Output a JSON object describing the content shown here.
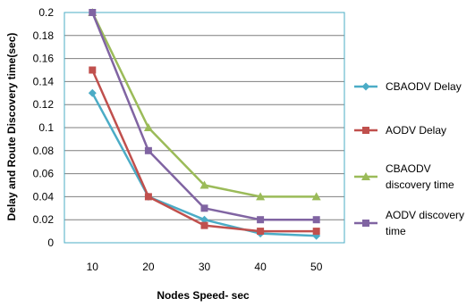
{
  "chart_data": {
    "type": "line",
    "x": [
      10,
      20,
      30,
      40,
      50
    ],
    "xlabel": "Nodes Speed- sec",
    "ylabel": "Delay and Route Discovery time(sec)",
    "ylim": [
      0,
      0.2
    ],
    "yticks": [
      "0",
      "0.02",
      "0.04",
      "0.06",
      "0.08",
      "0.1",
      "0.12",
      "0.14",
      "0.16",
      "0.18",
      "0.2"
    ],
    "xticks": [
      "10",
      "20",
      "30",
      "40",
      "50"
    ],
    "grid": "horizontal",
    "legend_position": "right",
    "series": [
      {
        "name": "CBAODV Delay",
        "legend_lines": [
          "CBAODV Delay"
        ],
        "color": "#4BACC6",
        "marker": "diamond",
        "values": [
          0.13,
          0.04,
          0.02,
          0.008,
          0.006
        ]
      },
      {
        "name": "AODV Delay",
        "legend_lines": [
          "AODV Delay"
        ],
        "color": "#C0504D",
        "marker": "square",
        "values": [
          0.15,
          0.04,
          0.015,
          0.01,
          0.01
        ]
      },
      {
        "name": "CBAODV discovery time",
        "legend_lines": [
          "CBAODV",
          "discovery time"
        ],
        "color": "#9BBB59",
        "marker": "triangle",
        "values": [
          0.2,
          0.1,
          0.05,
          0.04,
          0.04
        ]
      },
      {
        "name": "AODV discovery time",
        "legend_lines": [
          "AODV discovery",
          "time"
        ],
        "color": "#8064A2",
        "marker": "square",
        "values": [
          0.2,
          0.08,
          0.03,
          0.02,
          0.02
        ]
      }
    ]
  }
}
